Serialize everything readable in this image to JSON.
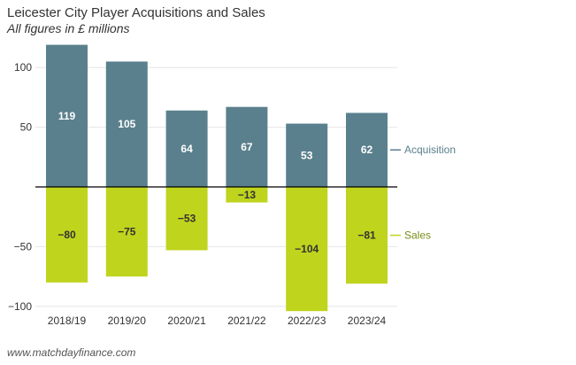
{
  "title": "Leicester City Player Acquisitions and Sales",
  "subtitle": "All figures in £ millions",
  "source": "www.matchdayfinance.com",
  "colors": {
    "acquisition": "#5a808d",
    "sales": "#bfd41d",
    "acquisition_label": "#5a808d",
    "sales_label": "#7a8a16",
    "grid": "#e6e6e6",
    "axis": "#000000"
  },
  "chart_data": {
    "type": "bar",
    "stacked": true,
    "categories": [
      "2018/19",
      "2019/20",
      "2020/21",
      "2021/22",
      "2022/23",
      "2023/24"
    ],
    "series": [
      {
        "name": "Acquisition",
        "values": [
          119,
          105,
          64,
          67,
          53,
          62
        ],
        "labels": [
          "119",
          "105",
          "64",
          "67",
          "53",
          "62"
        ]
      },
      {
        "name": "Sales",
        "values": [
          -80,
          -75,
          -53,
          -13,
          -104,
          -81
        ],
        "labels": [
          "−80",
          "−75",
          "−53",
          "−13",
          "−104",
          "−81"
        ]
      }
    ],
    "yticks": [
      100,
      50,
      -50,
      -100
    ],
    "ytick_labels": [
      "100",
      "50",
      "−50",
      "−100"
    ],
    "ylim": [
      -106,
      122
    ],
    "grid": true,
    "legend_placement": "right, direct labels"
  }
}
